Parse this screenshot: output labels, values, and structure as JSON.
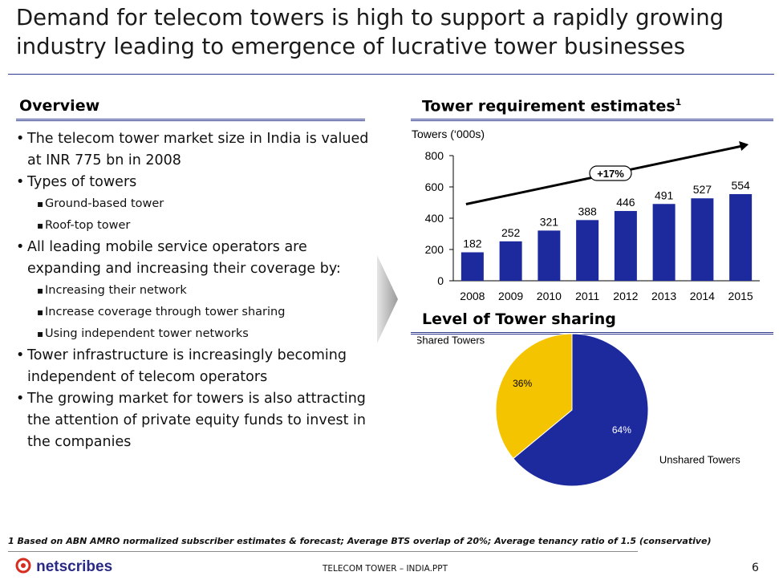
{
  "title": "Demand for telecom towers is high to support a rapidly growing industry leading to emergence of lucrative tower businesses",
  "overview": {
    "heading": "Overview",
    "bullets": [
      {
        "level": 1,
        "text": "The telecom tower market size in India is valued at INR 775 bn in 2008"
      },
      {
        "level": 1,
        "text": "Types of towers"
      },
      {
        "level": 2,
        "text": "Ground-based tower"
      },
      {
        "level": 2,
        "text": "Roof-top tower"
      },
      {
        "level": 1,
        "text": "All leading mobile service operators are expanding and increasing their coverage by:"
      },
      {
        "level": 2,
        "text": "Increasing their network"
      },
      {
        "level": 2,
        "text": "Increase coverage through tower sharing"
      },
      {
        "level": 2,
        "text": "Using independent tower networks"
      },
      {
        "level": 1,
        "text": "Tower infrastructure is increasingly becoming independent of telecom operators"
      },
      {
        "level": 1,
        "text": "The growing market for towers is also attracting the attention of private equity funds to invest in the companies"
      }
    ]
  },
  "chart_heading": {
    "text": "Tower requirement estimates",
    "sup": "1"
  },
  "share_heading": "Level of Tower sharing",
  "chart_data": [
    {
      "type": "bar",
      "title": "Tower requirement estimates",
      "ylabel": "Towers (‘000s)",
      "xlabel": "",
      "categories": [
        "2008",
        "2009",
        "2010",
        "2011",
        "2012",
        "2013",
        "2014",
        "2015"
      ],
      "values": [
        182,
        252,
        321,
        388,
        446,
        491,
        527,
        554
      ],
      "ylim": [
        0,
        800
      ],
      "yticks": [
        0,
        200,
        400,
        600,
        800
      ],
      "annotation": "+17%",
      "bar_color": "#1c2a9e"
    },
    {
      "type": "pie",
      "title": "Level of Tower sharing",
      "slices": [
        {
          "label": "Unshared Towers",
          "value": 64,
          "pct_label": "64%",
          "color": "#1c2a9e"
        },
        {
          "label": "Shared Towers",
          "value": 36,
          "pct_label": "36%",
          "color": "#f5c400"
        }
      ]
    }
  ],
  "footnote": "1 Based on ABN AMRO normalized subscriber estimates & forecast; Average BTS overlap of 20%; Average tenancy ratio of 1.5 (conservative)",
  "footer": {
    "logo_text": "netscribes",
    "center": "TELECOM TOWER – INDIA.PPT",
    "page": "6"
  },
  "colors": {
    "rule": "#2f3a8f",
    "bar": "#1c2a9e",
    "shared": "#f5c400"
  }
}
